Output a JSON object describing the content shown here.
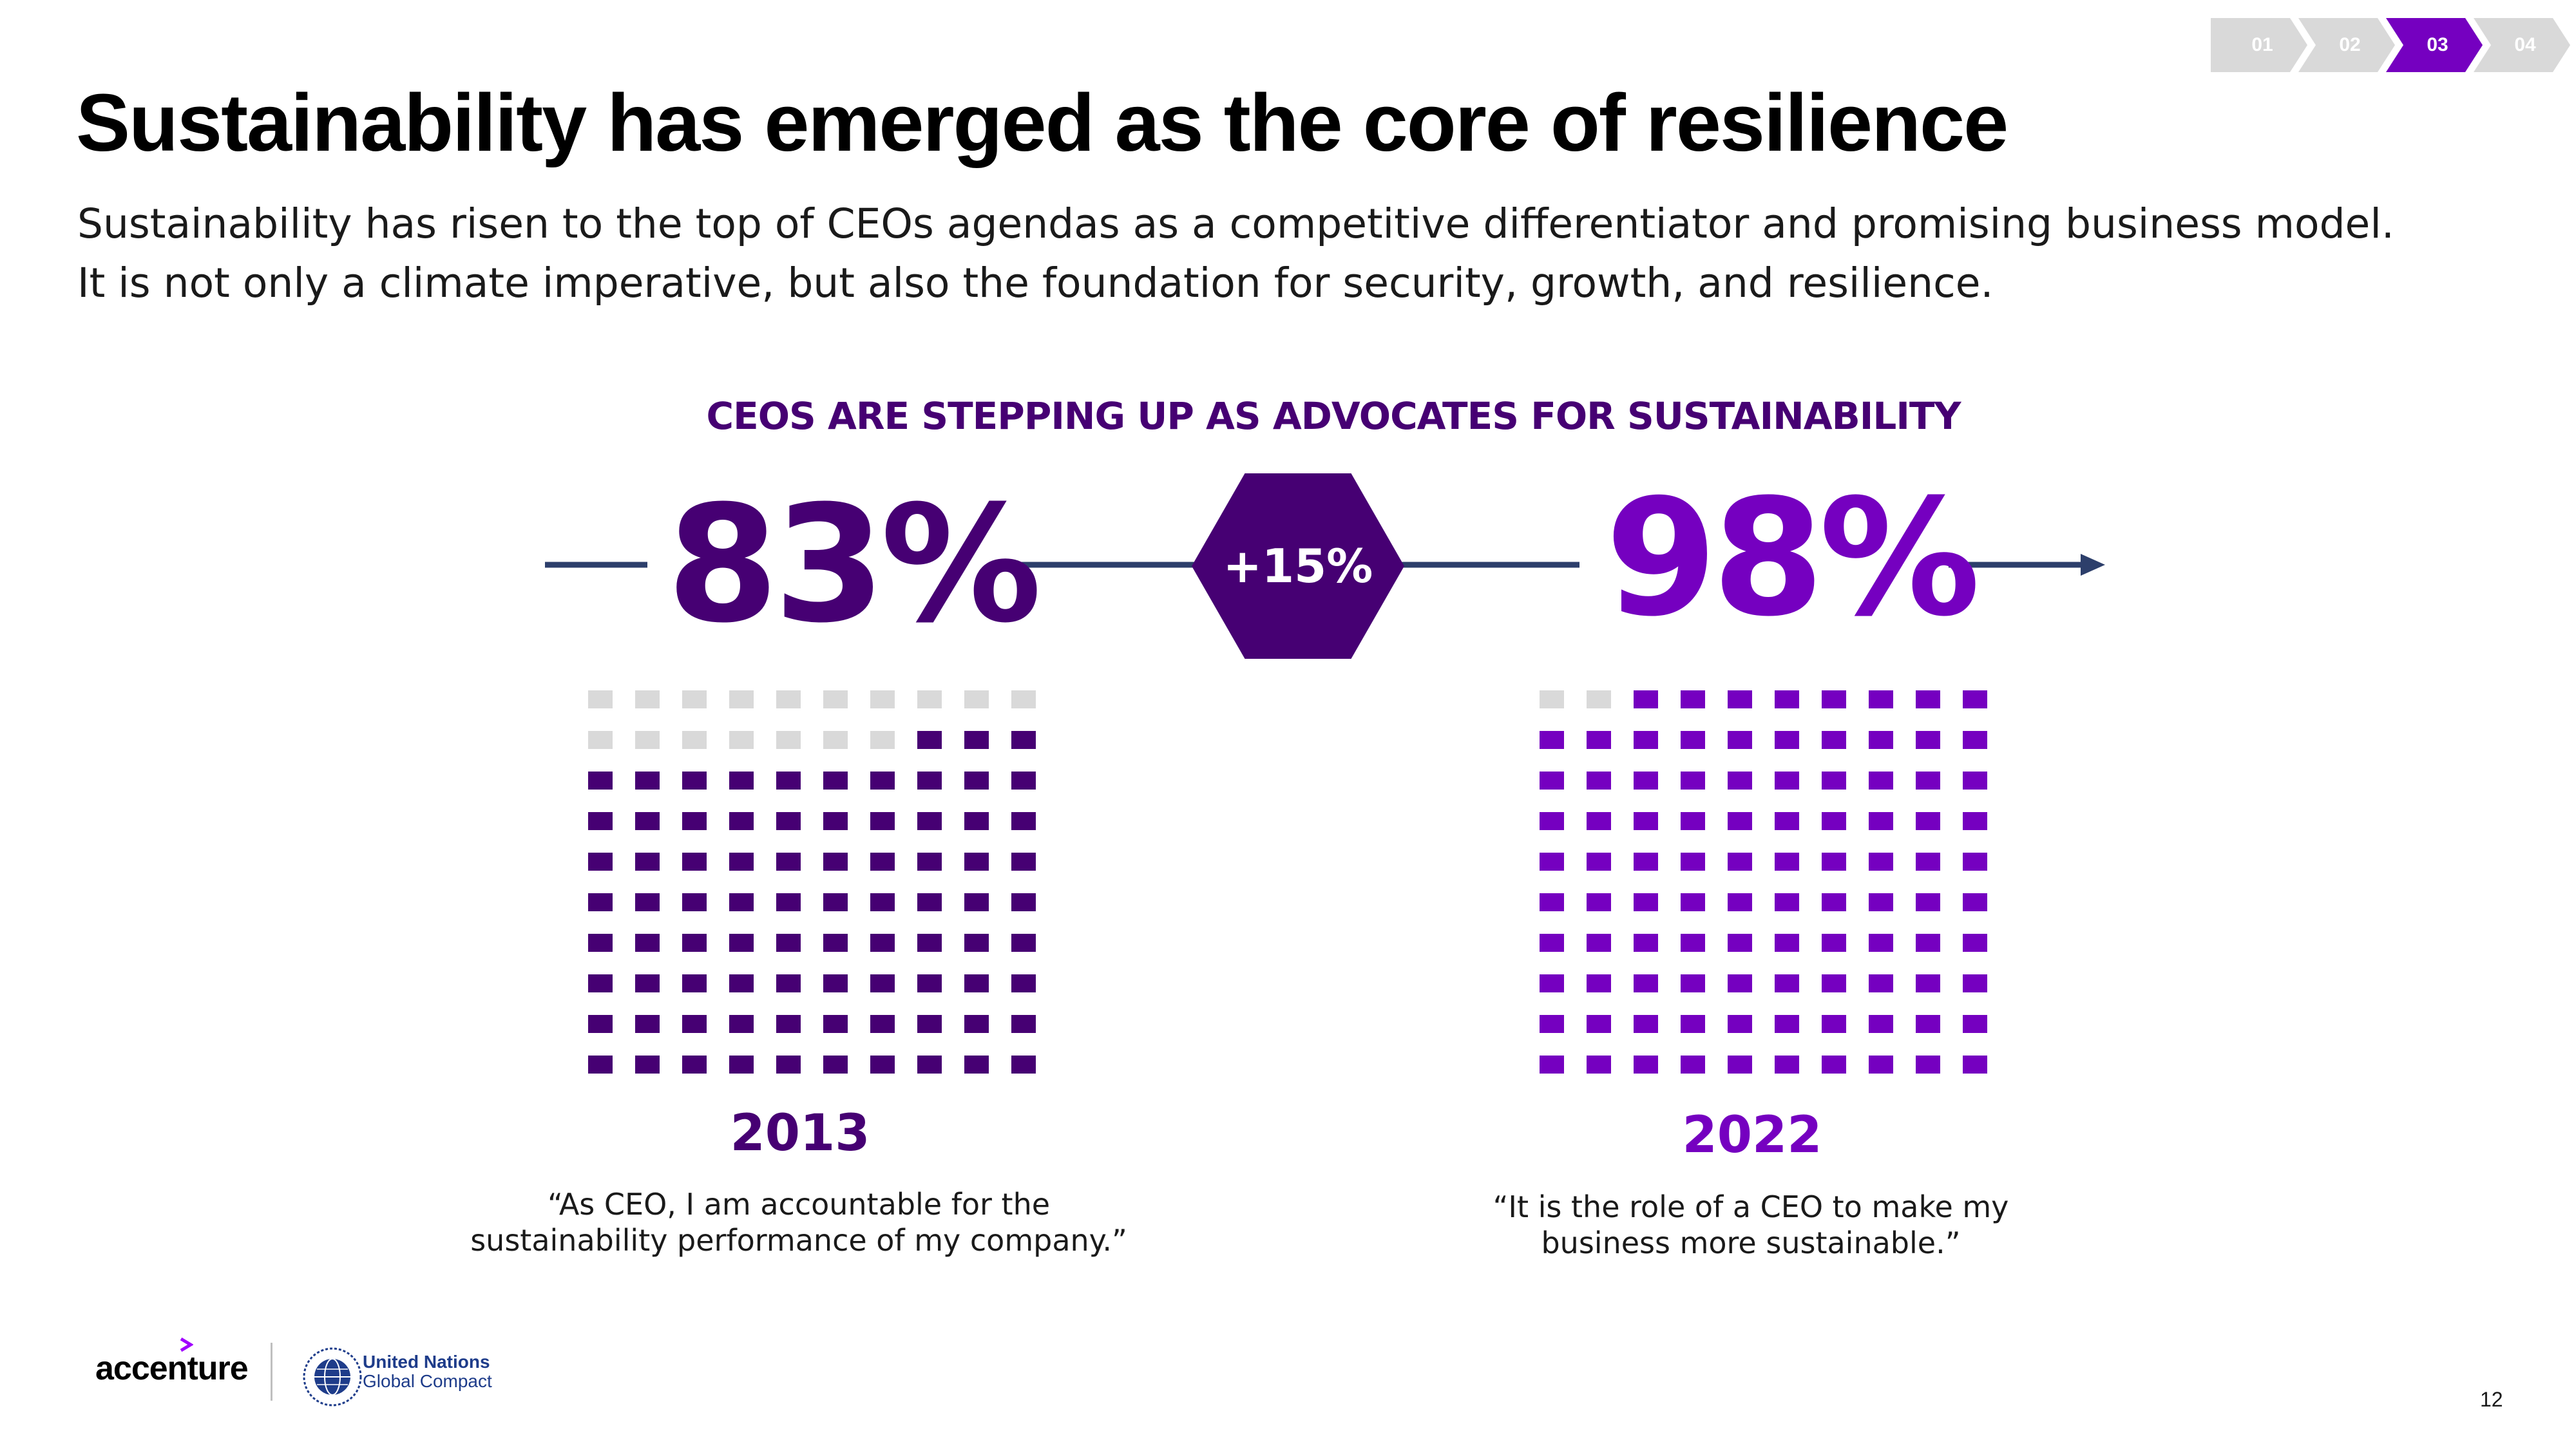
{
  "breadcrumbs": [
    {
      "label": "01",
      "active": false
    },
    {
      "label": "02",
      "active": false
    },
    {
      "label": "03",
      "active": true
    },
    {
      "label": "04",
      "active": false
    }
  ],
  "title": "Sustainability has emerged as the core of resilience",
  "subtitle_lines": [
    "Sustainability has risen to the top of CEOs agendas as a competitive differentiator and promising business model.",
    "It is not only a climate imperative, but also the foundation for security, growth, and resilience."
  ],
  "chart_data": {
    "type": "waffle",
    "title": "CEOS ARE STEPPING UP AS  ADVOCATES FOR SUSTAINABILITY",
    "categories": [
      "2013",
      "2022"
    ],
    "values": [
      83,
      98
    ],
    "units": "%",
    "change_label": "+15%",
    "grid": {
      "rows": 10,
      "cols": 10
    },
    "series": [
      {
        "year": "2013",
        "value_label": "83%",
        "filled": 83,
        "color": "#460073",
        "quote_lines": [
          "“As CEO, I am accountable for the",
          "sustainability performance of my company.”"
        ]
      },
      {
        "year": "2022",
        "value_label": "98%",
        "filled": 98,
        "color": "#7500c0",
        "quote_lines": [
          "“It is the role of a CEO to make my",
          "business more sustainable.”"
        ]
      }
    ],
    "empty_color": "#d9d9d9",
    "line_color": "#2d3f6b"
  },
  "footer": {
    "brand": "accenture",
    "partner_line1": "United Nations",
    "partner_line2": "Global Compact",
    "page_number": "12"
  }
}
